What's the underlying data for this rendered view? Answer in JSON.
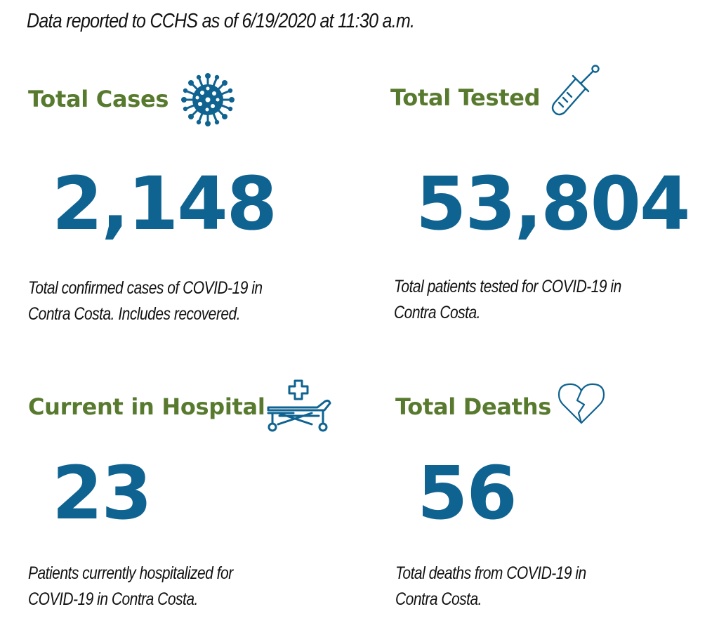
{
  "header": {
    "note": "Data reported to CCHS as of 6/19/2020 at 11:30 a.m."
  },
  "stats": {
    "cases": {
      "title": "Total Cases",
      "value": "2,148",
      "desc_line1": "Total confirmed cases of COVID-19 in",
      "desc_line2": "Contra Costa. Includes recovered.",
      "icon": "virus-icon"
    },
    "tested": {
      "title": "Total Tested",
      "value": "53,804",
      "desc_line1": "Total patients tested for COVID-19 in",
      "desc_line2": "Contra Costa.",
      "icon": "test-tube-icon"
    },
    "hospital": {
      "title": "Current in Hospital",
      "value": "23",
      "desc_line1": "Patients currently hospitalized for",
      "desc_line2": "COVID-19 in Contra Costa.",
      "icon": "hospital-bed-icon"
    },
    "deaths": {
      "title": "Total Deaths",
      "value": "56",
      "desc_line1": "Total deaths from COVID-19 in",
      "desc_line2": "Contra Costa.",
      "icon": "broken-heart-icon"
    }
  },
  "colors": {
    "title": "#587a2e",
    "value": "#0f6391",
    "icon": "#0f6391",
    "text": "#111111"
  }
}
